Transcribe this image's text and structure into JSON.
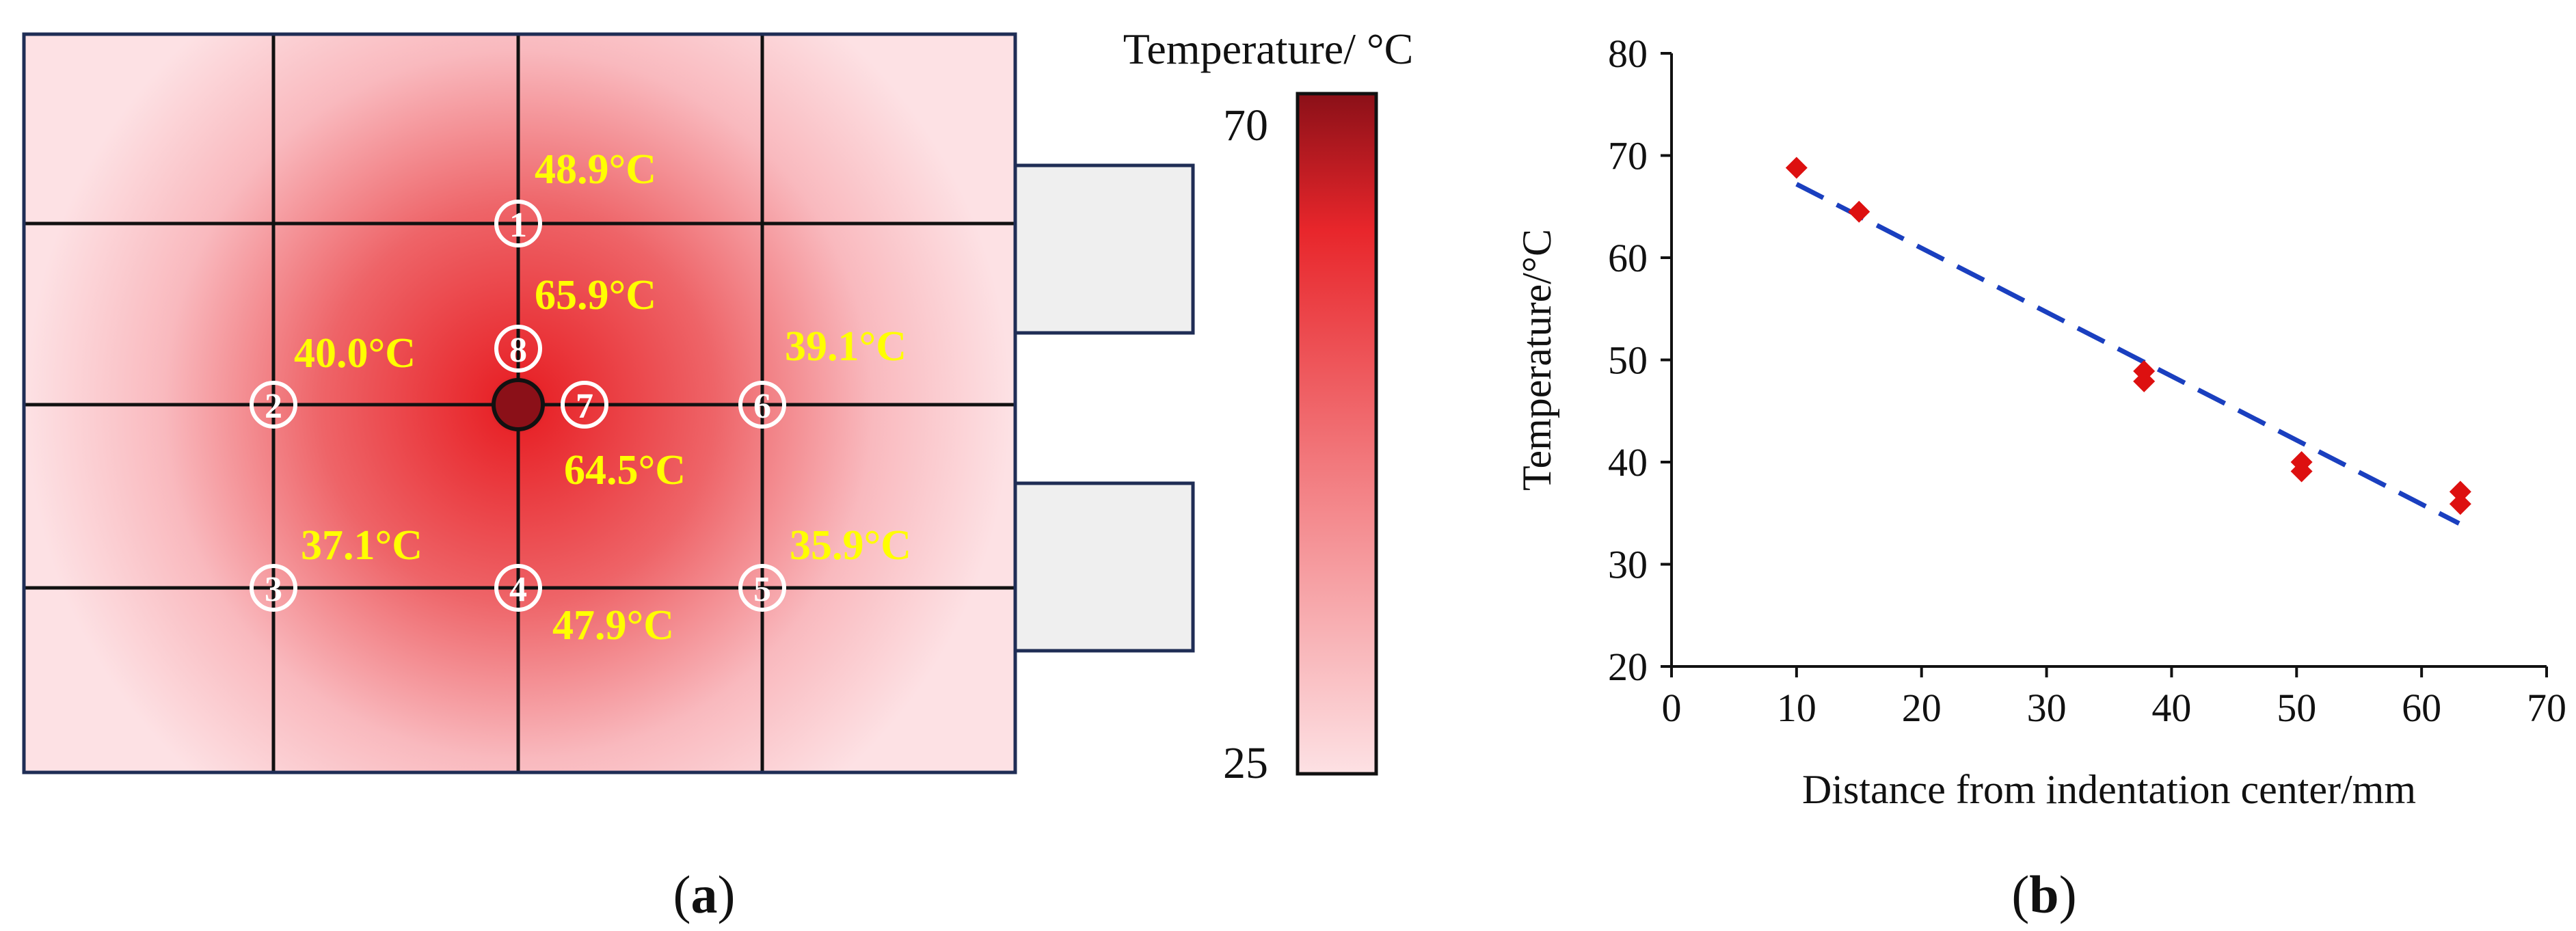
{
  "panel_a": {
    "colorbar": {
      "title": "Temperature/ °C",
      "max_label": "70",
      "min_label": "25",
      "min": 25,
      "max": 70,
      "color_low": "#fde1e4",
      "color_mid": "#e8262b",
      "color_high": "#8b1018"
    },
    "label_color": "#ffff00",
    "grid_line_color": "#111111",
    "background_color": "#fdd5d9",
    "points": [
      {
        "id": "1",
        "temp": "48.9°C"
      },
      {
        "id": "2",
        "temp": "40.0°C"
      },
      {
        "id": "3",
        "temp": "37.1°C"
      },
      {
        "id": "4",
        "temp": "47.9°C"
      },
      {
        "id": "5",
        "temp": "35.9°C"
      },
      {
        "id": "6",
        "temp": "39.1°C"
      },
      {
        "id": "7",
        "temp": "64.5°C"
      },
      {
        "id": "8",
        "temp": "65.9°C"
      }
    ],
    "caption_open": "(",
    "caption_letter": "a",
    "caption_close": ")"
  },
  "panel_b": {
    "caption_open": "(",
    "caption_letter": "b",
    "caption_close": ")"
  },
  "chart_data": [
    {
      "type": "heatmap",
      "title": "Temperature/ °C",
      "colorbar_range": [
        25,
        70
      ],
      "point_temperatures": [
        {
          "point": "1",
          "value": 48.9
        },
        {
          "point": "2",
          "value": 40.0
        },
        {
          "point": "3",
          "value": 37.1
        },
        {
          "point": "4",
          "value": 47.9
        },
        {
          "point": "5",
          "value": 35.9
        },
        {
          "point": "6",
          "value": 39.1
        },
        {
          "point": "7",
          "value": 64.5
        },
        {
          "point": "8",
          "value": 65.9
        }
      ]
    },
    {
      "type": "scatter",
      "xlabel": "Distance from indentation center/mm",
      "ylabel": "Temperature/°C",
      "xlim": [
        0,
        70
      ],
      "ylim": [
        20,
        80
      ],
      "xticks": [
        "0",
        "10",
        "20",
        "30",
        "40",
        "50",
        "60",
        "70"
      ],
      "yticks": [
        "20",
        "30",
        "40",
        "50",
        "60",
        "70",
        "80"
      ],
      "grid": false,
      "marker_color": "#dd1010",
      "fit_color": "#1a3fbf",
      "series": [
        {
          "points": [
            {
              "x": 10.0,
              "y": 68.8
            },
            {
              "x": 15.0,
              "y": 64.5
            },
            {
              "x": 37.8,
              "y": 48.9
            },
            {
              "x": 37.8,
              "y": 47.9
            },
            {
              "x": 50.4,
              "y": 40.0
            },
            {
              "x": 50.4,
              "y": 39.1
            },
            {
              "x": 63.1,
              "y": 37.1
            },
            {
              "x": 63.1,
              "y": 35.9
            }
          ]
        }
      ],
      "trendline": {
        "x": [
          10,
          63
        ],
        "y": [
          67.2,
          34.0
        ],
        "style": "dashed"
      }
    }
  ]
}
